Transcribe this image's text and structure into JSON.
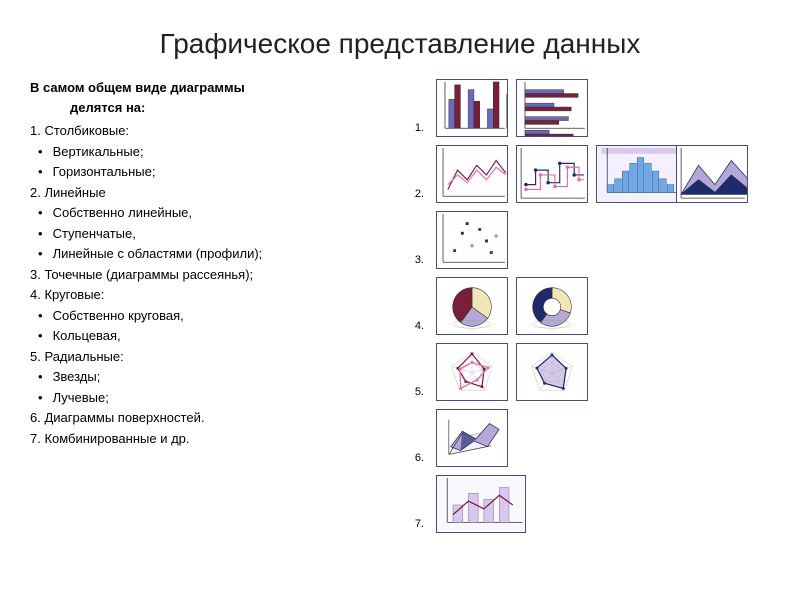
{
  "title": "Графическое представление данных",
  "intro_line1": "В самом общем виде диаграммы",
  "intro_line2": "делятся на:",
  "items": [
    {
      "t": "num",
      "text": "1. Столбиковые:"
    },
    {
      "t": "bul",
      "text": "Вертикальные;"
    },
    {
      "t": "bul",
      "text": "Горизонтальные;"
    },
    {
      "t": "num",
      "text": "2. Линейные"
    },
    {
      "t": "bul",
      "text": "Собственно линейные,"
    },
    {
      "t": "bul",
      "text": "Ступенчатые,"
    },
    {
      "t": "bul",
      "text": "Линейные с областями (профили);"
    },
    {
      "t": "num",
      "text": "3. Точечные (диаграммы рассеянья);"
    },
    {
      "t": "num",
      "text": "4. Круговые:"
    },
    {
      "t": "bul",
      "text": "Собственно круговая,"
    },
    {
      "t": "bul",
      "text": "Кольцевая,"
    },
    {
      "t": "num",
      "text": "5. Радиальные:"
    },
    {
      "t": "bul",
      "text": "Звезды;"
    },
    {
      "t": "bul",
      "text": "Лучевые;"
    },
    {
      "t": "num",
      "text": "6. Диаграммы поверхностей."
    },
    {
      "t": "num",
      "text": "7. Комбинированные и др."
    }
  ],
  "row_labels": [
    "1.",
    "2.",
    "3.",
    "4.",
    "5.",
    "6.",
    "7."
  ],
  "colors": {
    "navy": "#1f2a6b",
    "maroon": "#7a1f3a",
    "lilac": "#b5a8d6",
    "cream": "#f0e6b8",
    "pink": "#e66ab0",
    "blue": "#6fa8e6",
    "grid": "#9aa",
    "border": "#4a4a8a"
  },
  "charts": {
    "vbar": {
      "type": "bar",
      "vals": [
        [
          30,
          45
        ],
        [
          40,
          28
        ],
        [
          20,
          48
        ],
        [
          35,
          22
        ]
      ],
      "colors": [
        "#6a6ab8",
        "#7a1f3a"
      ]
    },
    "hbar": {
      "type": "hbar",
      "vals": [
        [
          40,
          55
        ],
        [
          30,
          48
        ],
        [
          45,
          35
        ],
        [
          25,
          50
        ]
      ],
      "colors": [
        "#6a6ab8",
        "#7a1f3a"
      ]
    },
    "line": {
      "type": "line",
      "series": [
        {
          "pts": [
            [
              5,
              45
            ],
            [
              15,
              25
            ],
            [
              25,
              35
            ],
            [
              35,
              20
            ],
            [
              45,
              30
            ],
            [
              55,
              15
            ],
            [
              65,
              28
            ]
          ],
          "color": "#7a1f3a"
        },
        {
          "pts": [
            [
              5,
              40
            ],
            [
              15,
              30
            ],
            [
              25,
              38
            ],
            [
              35,
              25
            ],
            [
              45,
              35
            ],
            [
              55,
              22
            ],
            [
              65,
              30
            ]
          ],
          "color": "#e66ab0"
        }
      ]
    },
    "step": {
      "type": "step",
      "series": [
        {
          "pts": [
            [
              5,
              40
            ],
            [
              15,
              40
            ],
            [
              15,
              25
            ],
            [
              28,
              25
            ],
            [
              28,
              38
            ],
            [
              40,
              38
            ],
            [
              40,
              18
            ],
            [
              55,
              18
            ],
            [
              55,
              30
            ],
            [
              65,
              30
            ]
          ],
          "color": "#1f2a6b",
          "markers": true
        },
        {
          "pts": [
            [
              5,
              45
            ],
            [
              20,
              45
            ],
            [
              20,
              30
            ],
            [
              35,
              30
            ],
            [
              35,
              42
            ],
            [
              48,
              42
            ],
            [
              48,
              22
            ],
            [
              60,
              22
            ],
            [
              60,
              35
            ],
            [
              65,
              35
            ]
          ],
          "color": "#e66ab0",
          "markers": true
        }
      ]
    },
    "hist": {
      "type": "hist",
      "vals": [
        8,
        14,
        22,
        30,
        36,
        30,
        22,
        14,
        8
      ],
      "color": "#6fa8e6"
    },
    "area": {
      "type": "area",
      "layers": [
        {
          "pts": [
            [
              0,
              50
            ],
            [
              18,
              20
            ],
            [
              35,
              40
            ],
            [
              52,
              15
            ],
            [
              70,
              35
            ],
            [
              70,
              50
            ]
          ],
          "fill": "#b5a8d6"
        },
        {
          "pts": [
            [
              0,
              50
            ],
            [
              18,
              35
            ],
            [
              35,
              48
            ],
            [
              52,
              30
            ],
            [
              70,
              45
            ],
            [
              70,
              50
            ]
          ],
          "fill": "#1f2a6b"
        }
      ]
    },
    "scatter": {
      "type": "scatter",
      "pts": [
        {
          "x": 12,
          "y": 40,
          "c": "#7a1f3a"
        },
        {
          "x": 20,
          "y": 22,
          "c": "#1f2a6b"
        },
        {
          "x": 30,
          "y": 35,
          "c": "#e66ab0"
        },
        {
          "x": 38,
          "y": 18,
          "c": "#7a1f3a"
        },
        {
          "x": 45,
          "y": 30,
          "c": "#1f2a6b"
        },
        {
          "x": 55,
          "y": 25,
          "c": "#e66ab0"
        },
        {
          "x": 25,
          "y": 12,
          "c": "#1f2a6b"
        },
        {
          "x": 50,
          "y": 42,
          "c": "#7a1f3a"
        }
      ]
    },
    "pie": {
      "type": "pie",
      "slices": [
        {
          "v": 35,
          "c": "#f0e6b8"
        },
        {
          "v": 25,
          "c": "#b5a8d6"
        },
        {
          "v": 40,
          "c": "#7a1f3a"
        }
      ]
    },
    "donut": {
      "type": "donut",
      "slices": [
        {
          "v": 30,
          "c": "#f0e6b8"
        },
        {
          "v": 30,
          "c": "#b5a8d6"
        },
        {
          "v": 40,
          "c": "#1f2a6b"
        }
      ]
    },
    "radar1": {
      "type": "radar",
      "n": 5,
      "series": [
        {
          "r": [
            0.9,
            0.6,
            0.8,
            0.5,
            0.7
          ],
          "c": "#7a1f3a"
        },
        {
          "r": [
            0.5,
            0.8,
            0.4,
            0.9,
            0.6
          ],
          "c": "#e66ab0"
        }
      ]
    },
    "radar2": {
      "type": "radar",
      "n": 5,
      "series": [
        {
          "r": [
            0.85,
            0.7,
            0.9,
            0.6,
            0.75
          ],
          "c": "#1f2a6b",
          "fill": "#b5a8d6"
        }
      ]
    },
    "surface": {
      "type": "surface",
      "c1": "#b5a8d6",
      "c2": "#1f2a6b"
    }
  }
}
